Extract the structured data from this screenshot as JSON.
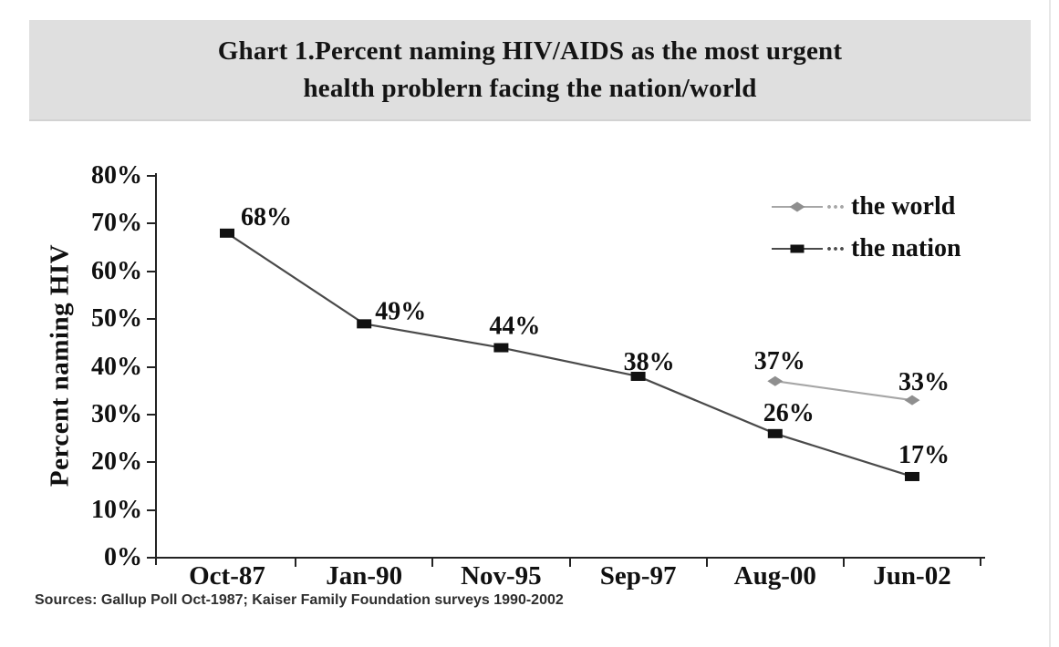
{
  "title_band": {
    "line1": "Ghart 1.Percent naming HIV/AIDS as the most urgent",
    "line2": "health problern facing the nation/world",
    "background": "#dfdfdf"
  },
  "chart_data": {
    "type": "line",
    "title": "Ghart 1.Percent naming HIV/AIDS as the most urgent health problern facing the nation/world",
    "xlabel": "",
    "ylabel": "Percent naming HIV",
    "categories": [
      "Oct-87",
      "Jan-90",
      "Nov-95",
      "Sep-97",
      "Aug-00",
      "Jun-02"
    ],
    "y_ticks": [
      "80%",
      "70%",
      "60%",
      "50%",
      "40%",
      "30%",
      "20%",
      "10%",
      "0%"
    ],
    "ylim": [
      0,
      80
    ],
    "grid": false,
    "legend_position": "top-right",
    "series": [
      {
        "name": "the world",
        "marker": "diamond",
        "line_color": "#a6a6a6",
        "marker_color": "#8f8f8f",
        "values": [
          null,
          null,
          null,
          null,
          37,
          33
        ],
        "labels": [
          null,
          null,
          null,
          null,
          "37%",
          "33%"
        ],
        "label_offsets": [
          null,
          null,
          null,
          null,
          [
            5,
            -23
          ],
          [
            13,
            -21
          ]
        ]
      },
      {
        "name": "the nation",
        "marker": "square",
        "line_color": "#4a4a4a",
        "marker_color": "#111111",
        "values": [
          68,
          49,
          44,
          38,
          26,
          17
        ],
        "labels": [
          "68%",
          "49%",
          "44%",
          "38%",
          "26%",
          "17%"
        ],
        "label_offsets": [
          [
            43,
            -19
          ],
          [
            40,
            -15
          ],
          [
            15,
            -25
          ],
          [
            12,
            -17
          ],
          [
            15,
            -24
          ],
          [
            13,
            -25
          ]
        ]
      }
    ]
  },
  "legend": {
    "dots": "..."
  },
  "source_note": "Sources: Gallup Poll Oct-1987; Kaiser Family Foundation surveys 1990-2002",
  "colors": {
    "axis": "#232323",
    "title_band": "#dfdfdf",
    "world_line": "#a6a6a6",
    "nation_line": "#4a4a4a"
  }
}
